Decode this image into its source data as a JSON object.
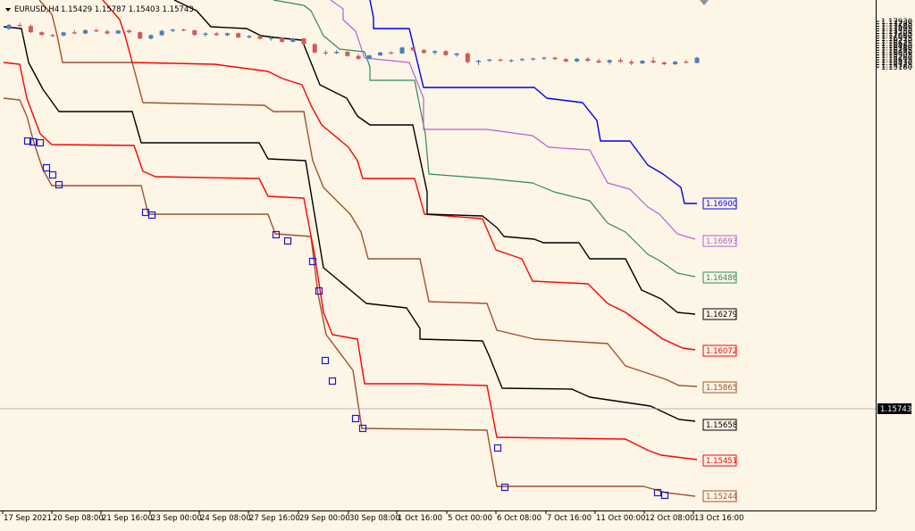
{
  "header": {
    "symbol": "EURUSD,H4",
    "ohlc": "1.15429 1.15787 1.15403 1.15743"
  },
  "colors": {
    "background": "#fdf5e6",
    "bull": "#4a7fb8",
    "bear": "#cd5c5c",
    "lines": {
      "brown": "#a0522d",
      "red": "#ff0000",
      "black": "#000000",
      "green": "#2e8b57",
      "violet": "#b65fd7",
      "blue": "#0000ee"
    }
  },
  "chart_data": {
    "type": "candlestick",
    "symbol": "EURUSD",
    "timeframe": "H4",
    "ylim": [
      1.1513,
      1.1807
    ],
    "price_axis_ticks": [
      "1.17930",
      "1.17785",
      "1.17640",
      "1.17495",
      "1.17350",
      "1.17205",
      "1.17060",
      "1.16915",
      "1.16770",
      "1.16625",
      "1.16480",
      "1.16340",
      "1.16195",
      "1.16050",
      "1.15905",
      "1.15760",
      "1.15615",
      "1.15470",
      "1.15325",
      "1.15180"
    ],
    "time_axis_labels": [
      "17 Sep 2021",
      "20 Sep 08:00",
      "21 Sep 16:00",
      "23 Sep 00:00",
      "24 Sep 08:00",
      "27 Sep 16:00",
      "29 Sep 00:00",
      "30 Sep 08:00",
      "1 Oct 16:00",
      "5 Oct 00:00",
      "6 Oct 08:00",
      "7 Oct 16:00",
      "11 Oct 00:00",
      "12 Oct 08:00",
      "13 Oct 16:00"
    ],
    "current_price": "1.15743",
    "line_levels": [
      {
        "label": "1.16900",
        "color": "#0000ee"
      },
      {
        "label": "1.16693",
        "color": "#b65fd7"
      },
      {
        "label": "1.16486",
        "color": "#2e8b57"
      },
      {
        "label": "1.16279",
        "color": "#000000"
      },
      {
        "label": "1.16072",
        "color": "#ff0000"
      },
      {
        "label": "1.15865",
        "color": "#a0522d"
      },
      {
        "label": "1.15658",
        "color": "#000000"
      },
      {
        "label": "1.15451",
        "color": "#ff0000"
      },
      {
        "label": "1.15244",
        "color": "#a0522d"
      }
    ],
    "candles": [
      [
        1.1748,
        1.1778,
        1.1742,
        1.1772
      ],
      [
        1.1772,
        1.1785,
        1.1758,
        1.1765
      ],
      [
        1.1765,
        1.1775,
        1.1722,
        1.1728
      ],
      [
        1.1728,
        1.1735,
        1.1705,
        1.1712
      ],
      [
        1.1712,
        1.1718,
        1.1696,
        1.1708
      ],
      [
        1.1708,
        1.173,
        1.1703,
        1.1727
      ],
      [
        1.1727,
        1.1741,
        1.1715,
        1.172
      ],
      [
        1.172,
        1.1746,
        1.1716,
        1.174
      ],
      [
        1.174,
        1.1752,
        1.1728,
        1.1733
      ],
      [
        1.1733,
        1.1745,
        1.1715,
        1.172
      ],
      [
        1.172,
        1.1742,
        1.1718,
        1.1738
      ],
      [
        1.1738,
        1.1745,
        1.172,
        1.1728
      ],
      [
        1.1728,
        1.1733,
        1.1685,
        1.169
      ],
      [
        1.169,
        1.1715,
        1.1684,
        1.171
      ],
      [
        1.171,
        1.1742,
        1.1705,
        1.1736
      ],
      [
        1.1736,
        1.1749,
        1.1728,
        1.1744
      ],
      [
        1.1744,
        1.175,
        1.1733,
        1.1739
      ],
      [
        1.1739,
        1.1744,
        1.1705,
        1.1712
      ],
      [
        1.1712,
        1.1728,
        1.17,
        1.172
      ],
      [
        1.172,
        1.173,
        1.1706,
        1.171
      ],
      [
        1.171,
        1.1725,
        1.1702,
        1.1722
      ],
      [
        1.1722,
        1.1727,
        1.1693,
        1.1697
      ],
      [
        1.1697,
        1.1712,
        1.169,
        1.1705
      ],
      [
        1.1705,
        1.171,
        1.1684,
        1.1688
      ],
      [
        1.1688,
        1.17,
        1.1676,
        1.1694
      ],
      [
        1.1694,
        1.1698,
        1.1665,
        1.167
      ],
      [
        1.167,
        1.1695,
        1.1666,
        1.169
      ],
      [
        1.169,
        1.1694,
        1.1652,
        1.1656
      ],
      [
        1.1656,
        1.1662,
        1.16,
        1.1606
      ],
      [
        1.1606,
        1.1618,
        1.159,
        1.1602
      ],
      [
        1.1602,
        1.162,
        1.1596,
        1.161
      ],
      [
        1.161,
        1.1614,
        1.158,
        1.1585
      ],
      [
        1.1585,
        1.1598,
        1.156,
        1.1568
      ],
      [
        1.1568,
        1.1592,
        1.1564,
        1.1588
      ],
      [
        1.1588,
        1.161,
        1.1585,
        1.1606
      ],
      [
        1.1606,
        1.1612,
        1.1595,
        1.16
      ],
      [
        1.16,
        1.164,
        1.1597,
        1.1636
      ],
      [
        1.1636,
        1.1641,
        1.1614,
        1.162
      ],
      [
        1.162,
        1.1628,
        1.1596,
        1.1604
      ],
      [
        1.1604,
        1.162,
        1.1593,
        1.1614
      ],
      [
        1.1614,
        1.162,
        1.1585,
        1.159
      ],
      [
        1.159,
        1.1604,
        1.158,
        1.16
      ],
      [
        1.16,
        1.1606,
        1.154,
        1.1548
      ],
      [
        1.1548,
        1.1562,
        1.153,
        1.1556
      ],
      [
        1.1556,
        1.1568,
        1.1548,
        1.1563
      ],
      [
        1.1563,
        1.157,
        1.155,
        1.1558
      ],
      [
        1.1558,
        1.1566,
        1.1546,
        1.156
      ],
      [
        1.156,
        1.1572,
        1.1554,
        1.1566
      ],
      [
        1.1566,
        1.1574,
        1.1556,
        1.157
      ],
      [
        1.157,
        1.158,
        1.156,
        1.1575
      ],
      [
        1.1575,
        1.158,
        1.156,
        1.1566
      ],
      [
        1.1566,
        1.1572,
        1.1548,
        1.1552
      ],
      [
        1.1552,
        1.1572,
        1.1548,
        1.1568
      ],
      [
        1.1568,
        1.1578,
        1.155,
        1.1556
      ],
      [
        1.1556,
        1.157,
        1.154,
        1.1546
      ],
      [
        1.1546,
        1.1566,
        1.1532,
        1.156
      ],
      [
        1.156,
        1.1574,
        1.1543,
        1.155
      ],
      [
        1.155,
        1.1562,
        1.153,
        1.154
      ],
      [
        1.154,
        1.156,
        1.1536,
        1.1556
      ],
      [
        1.1556,
        1.1578,
        1.154,
        1.1546
      ],
      [
        1.1546,
        1.1552,
        1.1529,
        1.1535
      ],
      [
        1.1535,
        1.1556,
        1.153,
        1.155
      ],
      [
        1.155,
        1.1562,
        1.154,
        1.1545
      ],
      [
        1.1543,
        1.1579,
        1.154,
        1.1574
      ]
    ]
  }
}
